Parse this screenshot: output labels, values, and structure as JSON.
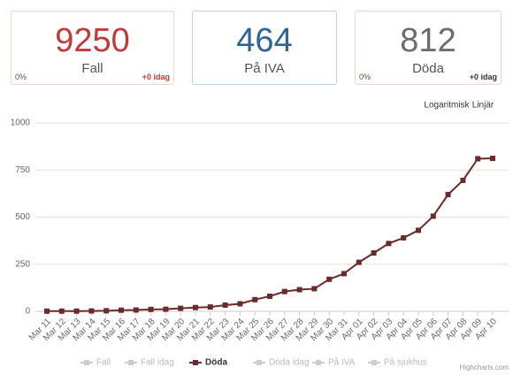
{
  "cards": [
    {
      "value": "9250",
      "label": "Fall",
      "left": "0%",
      "right": "+0 idag",
      "color": "#c0393b"
    },
    {
      "value": "464",
      "label": "På IVA",
      "left": "",
      "right": "",
      "color": "#2f6496"
    },
    {
      "value": "812",
      "label": "Döda",
      "left": "0%",
      "right": "+0 idag",
      "color": "#6d6d6d"
    }
  ],
  "buttons": [
    "Logaritmisk",
    "Linjär"
  ],
  "credit": "Highcharts.com",
  "chart_data": {
    "type": "line",
    "categories": [
      "Mar 11",
      "Mar 12",
      "Mar 13",
      "Mar 14",
      "Mar 15",
      "Mar 16",
      "Mar 17",
      "Mar 18",
      "Mar 19",
      "Mar 20",
      "Mar 21",
      "Mar 22",
      "Mar 23",
      "Mar 24",
      "Mar 25",
      "Mar 26",
      "Mar 27",
      "Mar 28",
      "Mar 29",
      "Mar 30",
      "Mar 31",
      "Apr 01",
      "Apr 02",
      "Apr 03",
      "Apr 04",
      "Apr 05",
      "Apr 06",
      "Apr 07",
      "Apr 08",
      "Apr 09",
      "Apr 10"
    ],
    "series": [
      {
        "name": "Döda",
        "color": "#6b2b2b",
        "values": [
          1,
          1,
          1,
          2,
          3,
          6,
          7,
          10,
          11,
          16,
          20,
          23,
          33,
          40,
          62,
          80,
          105,
          115,
          120,
          170,
          200,
          260,
          310,
          360,
          390,
          430,
          505,
          620,
          695,
          810,
          812
        ]
      }
    ],
    "hidden_series": [
      "Fall",
      "Fall idag",
      "Döda idag",
      "På IVA",
      "På sjukhus"
    ],
    "ylim": [
      0,
      1000
    ],
    "yticks": [
      0,
      250,
      500,
      750,
      1000
    ],
    "grid": true
  }
}
